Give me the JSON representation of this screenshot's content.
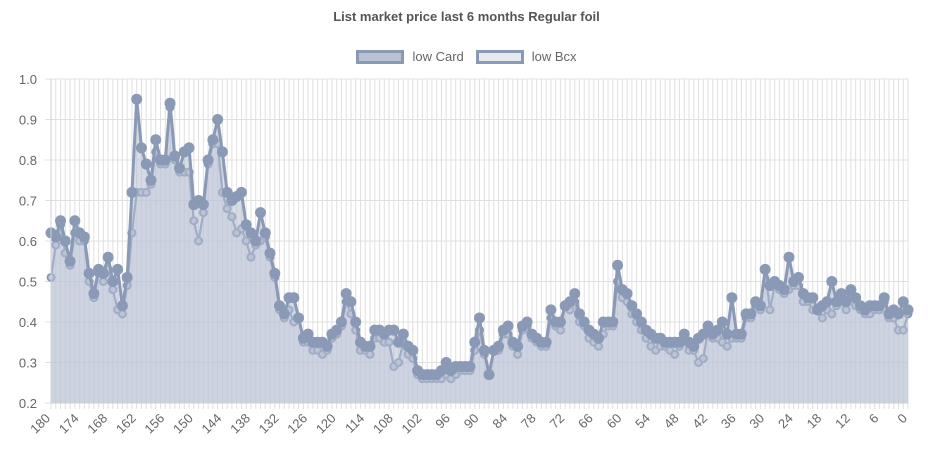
{
  "chart_data": {
    "type": "line",
    "title": "List market price last 6 months Regular foil",
    "xlabel": "",
    "ylabel": "",
    "ylim": [
      0.2,
      1.0
    ],
    "yticks": [
      "1.0",
      "0.9",
      "0.8",
      "0.7",
      "0.6",
      "0.5",
      "0.4",
      "0.3",
      "0.2"
    ],
    "xticks": [
      "180",
      "174",
      "168",
      "162",
      "156",
      "150",
      "144",
      "138",
      "132",
      "126",
      "120",
      "114",
      "108",
      "102",
      "96",
      "90",
      "84",
      "78",
      "72",
      "66",
      "60",
      "54",
      "48",
      "42",
      "36",
      "30",
      "24",
      "18",
      "12",
      "6",
      "0"
    ],
    "x_range": [
      180,
      0
    ],
    "legend_position": "top",
    "grid": true,
    "colors": {
      "line": "#8a99b5",
      "fill": "#b4bed2",
      "grid": "#e0e0e0"
    },
    "series": [
      {
        "name": "low Card",
        "x": [
          180,
          179,
          178,
          177,
          176,
          175,
          174,
          173,
          172,
          171,
          170,
          169,
          168,
          167,
          166,
          165,
          164,
          163,
          162,
          161,
          160,
          159,
          158,
          157,
          156,
          155,
          154,
          153,
          152,
          151,
          150,
          149,
          148,
          147,
          146,
          145,
          144,
          143,
          142,
          141,
          140,
          139,
          138,
          137,
          136,
          135,
          134,
          133,
          132,
          131,
          130,
          129,
          128,
          127,
          126,
          125,
          124,
          123,
          122,
          121,
          120,
          119,
          118,
          117,
          116,
          115,
          114,
          113,
          112,
          111,
          110,
          109,
          108,
          107,
          106,
          105,
          104,
          103,
          102,
          101,
          100,
          99,
          98,
          97,
          96,
          95,
          94,
          93,
          92,
          91,
          90,
          89,
          88,
          87,
          86,
          85,
          84,
          83,
          82,
          81,
          80,
          79,
          78,
          77,
          76,
          75,
          74,
          73,
          72,
          71,
          70,
          69,
          68,
          67,
          66,
          65,
          64,
          63,
          62,
          61,
          60,
          59,
          58,
          57,
          56,
          55,
          54,
          53,
          52,
          51,
          50,
          49,
          48,
          47,
          46,
          45,
          44,
          43,
          42,
          41,
          40,
          39,
          38,
          37,
          36,
          35,
          34,
          33,
          32,
          31,
          30,
          29,
          28,
          27,
          26,
          25,
          24,
          23,
          22,
          21,
          20,
          19,
          18,
          17,
          16,
          15,
          14,
          13,
          12,
          11,
          10,
          9,
          8,
          7,
          6,
          5,
          4,
          3,
          2,
          1,
          0
        ],
        "values": [
          0.62,
          0.61,
          0.65,
          0.6,
          0.55,
          0.65,
          0.62,
          0.61,
          0.52,
          0.47,
          0.53,
          0.52,
          0.56,
          0.5,
          0.53,
          0.44,
          0.51,
          0.72,
          0.95,
          0.83,
          0.79,
          0.75,
          0.85,
          0.8,
          0.8,
          0.94,
          0.81,
          0.78,
          0.82,
          0.83,
          0.69,
          0.7,
          0.69,
          0.8,
          0.85,
          0.9,
          0.82,
          0.72,
          0.7,
          0.71,
          0.72,
          0.64,
          0.62,
          0.6,
          0.67,
          0.62,
          0.57,
          0.52,
          0.44,
          0.42,
          0.46,
          0.46,
          0.41,
          0.36,
          0.37,
          0.35,
          0.35,
          0.35,
          0.34,
          0.37,
          0.38,
          0.4,
          0.47,
          0.45,
          0.4,
          0.35,
          0.34,
          0.34,
          0.38,
          0.38,
          0.37,
          0.38,
          0.38,
          0.35,
          0.37,
          0.34,
          0.33,
          0.28,
          0.27,
          0.27,
          0.27,
          0.27,
          0.28,
          0.3,
          0.28,
          0.29,
          0.29,
          0.29,
          0.29,
          0.35,
          0.41,
          0.33,
          0.27,
          0.33,
          0.34,
          0.38,
          0.39,
          0.35,
          0.34,
          0.39,
          0.4,
          0.37,
          0.36,
          0.35,
          0.35,
          0.43,
          0.4,
          0.4,
          0.44,
          0.45,
          0.47,
          0.42,
          0.4,
          0.38,
          0.37,
          0.36,
          0.4,
          0.4,
          0.4,
          0.54,
          0.48,
          0.47,
          0.44,
          0.42,
          0.4,
          0.38,
          0.37,
          0.36,
          0.36,
          0.35,
          0.35,
          0.35,
          0.35,
          0.37,
          0.35,
          0.34,
          0.36,
          0.37,
          0.39,
          0.37,
          0.38,
          0.4,
          0.37,
          0.46,
          0.37,
          0.37,
          0.42,
          0.42,
          0.45,
          0.44,
          0.53,
          0.49,
          0.5,
          0.49,
          0.48,
          0.56,
          0.5,
          0.51,
          0.47,
          0.46,
          0.46,
          0.43,
          0.44,
          0.45,
          0.5,
          0.45,
          0.47,
          0.45,
          0.48,
          0.46,
          0.44,
          0.43,
          0.44,
          0.44,
          0.44,
          0.46,
          0.42,
          0.43,
          0.42,
          0.45,
          0.43
        ]
      },
      {
        "name": "low Bcx",
        "x": [
          180,
          179,
          178,
          177,
          176,
          175,
          174,
          173,
          172,
          171,
          170,
          169,
          168,
          167,
          166,
          165,
          164,
          163,
          162,
          161,
          160,
          159,
          158,
          157,
          156,
          155,
          154,
          153,
          152,
          151,
          150,
          149,
          148,
          147,
          146,
          145,
          144,
          143,
          142,
          141,
          140,
          139,
          138,
          137,
          136,
          135,
          134,
          133,
          132,
          131,
          130,
          129,
          128,
          127,
          126,
          125,
          124,
          123,
          122,
          121,
          120,
          119,
          118,
          117,
          116,
          115,
          114,
          113,
          112,
          111,
          110,
          109,
          108,
          107,
          106,
          105,
          104,
          103,
          102,
          101,
          100,
          99,
          98,
          97,
          96,
          95,
          94,
          93,
          92,
          91,
          90,
          89,
          88,
          87,
          86,
          85,
          84,
          83,
          82,
          81,
          80,
          79,
          78,
          77,
          76,
          75,
          74,
          73,
          72,
          71,
          70,
          69,
          68,
          67,
          66,
          65,
          64,
          63,
          62,
          61,
          60,
          59,
          58,
          57,
          56,
          55,
          54,
          53,
          52,
          51,
          50,
          49,
          48,
          47,
          46,
          45,
          44,
          43,
          42,
          41,
          40,
          39,
          38,
          37,
          36,
          35,
          34,
          33,
          32,
          31,
          30,
          29,
          28,
          27,
          26,
          25,
          24,
          23,
          22,
          21,
          20,
          19,
          18,
          17,
          16,
          15,
          14,
          13,
          12,
          11,
          10,
          9,
          8,
          7,
          6,
          5,
          4,
          3,
          2,
          1,
          0
        ],
        "values": [
          0.51,
          0.59,
          0.64,
          0.57,
          0.54,
          0.62,
          0.6,
          0.6,
          0.5,
          0.46,
          0.52,
          0.5,
          0.53,
          0.48,
          0.43,
          0.42,
          0.49,
          0.62,
          0.72,
          0.72,
          0.72,
          0.74,
          0.82,
          0.79,
          0.79,
          0.93,
          0.8,
          0.77,
          0.77,
          0.77,
          0.65,
          0.6,
          0.67,
          0.79,
          0.84,
          0.84,
          0.72,
          0.68,
          0.66,
          0.62,
          0.63,
          0.6,
          0.56,
          0.59,
          0.6,
          0.61,
          0.56,
          0.51,
          0.43,
          0.41,
          0.43,
          0.4,
          0.41,
          0.35,
          0.35,
          0.33,
          0.33,
          0.32,
          0.33,
          0.36,
          0.37,
          0.39,
          0.45,
          0.42,
          0.38,
          0.33,
          0.33,
          0.32,
          0.36,
          0.36,
          0.35,
          0.35,
          0.29,
          0.3,
          0.35,
          0.32,
          0.31,
          0.27,
          0.26,
          0.26,
          0.26,
          0.26,
          0.26,
          0.27,
          0.26,
          0.27,
          0.28,
          0.28,
          0.28,
          0.33,
          0.38,
          0.32,
          0.27,
          0.33,
          0.33,
          0.37,
          0.37,
          0.34,
          0.32,
          0.38,
          0.39,
          0.36,
          0.35,
          0.34,
          0.34,
          0.41,
          0.39,
          0.38,
          0.44,
          0.43,
          0.45,
          0.4,
          0.39,
          0.36,
          0.35,
          0.34,
          0.37,
          0.39,
          0.39,
          0.5,
          0.46,
          0.45,
          0.42,
          0.4,
          0.38,
          0.36,
          0.34,
          0.33,
          0.34,
          0.34,
          0.33,
          0.32,
          0.34,
          0.36,
          0.33,
          0.33,
          0.3,
          0.31,
          0.38,
          0.36,
          0.36,
          0.35,
          0.34,
          0.36,
          0.36,
          0.36,
          0.41,
          0.41,
          0.44,
          0.43,
          0.53,
          0.43,
          0.49,
          0.48,
          0.47,
          0.48,
          0.49,
          0.49,
          0.45,
          0.45,
          0.43,
          0.43,
          0.41,
          0.43,
          0.42,
          0.44,
          0.45,
          0.43,
          0.47,
          0.44,
          0.43,
          0.42,
          0.42,
          0.43,
          0.43,
          0.45,
          0.41,
          0.41,
          0.38,
          0.38,
          0.42
        ]
      }
    ]
  }
}
